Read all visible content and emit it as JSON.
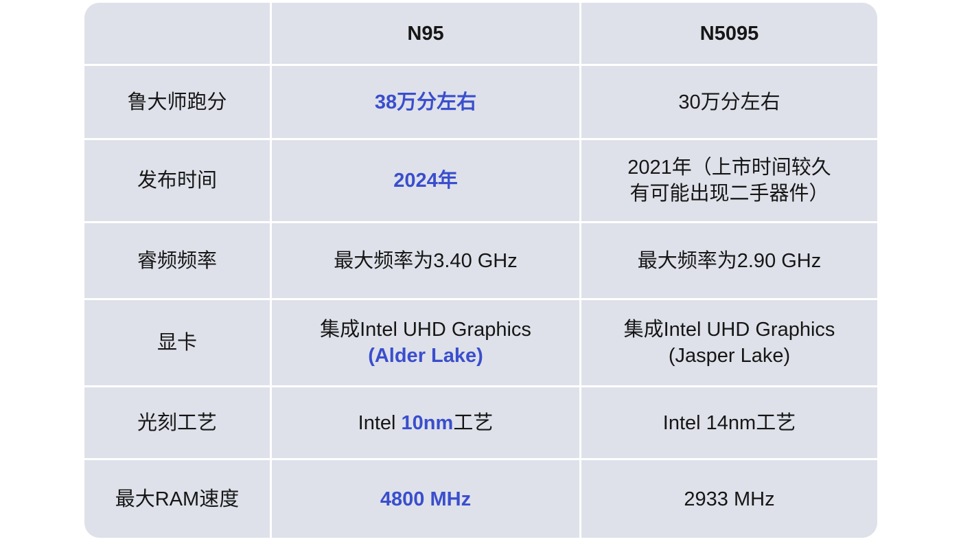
{
  "colors": {
    "highlight_blue": "#3a4ecd",
    "cell_background": "#dee1e9",
    "divider_white": "#ffffff",
    "text_dark": "#161616"
  },
  "table": {
    "columns": {
      "label_header": "",
      "n95": "N95",
      "n5095": "N5095"
    },
    "rows": {
      "benchmark": {
        "label": "鲁大师跑分",
        "n95_value": "38万分左右",
        "n5095_value": "30万分左右"
      },
      "release_date": {
        "label": "发布时间",
        "n95_value": "2024年",
        "n5095_line1": "2021年（上市时间较久",
        "n5095_line2": "有可能出现二手器件）"
      },
      "turbo_frequency": {
        "label": "睿频频率",
        "n95_value": "最大频率为3.40 GHz",
        "n5095_value": "最大频率为2.90 GHz"
      },
      "graphics": {
        "label": "显卡",
        "n95_line1": "集成Intel UHD Graphics",
        "n95_line2": "(Alder Lake)",
        "n5095_line1": "集成Intel UHD Graphics",
        "n5095_line2": "(Jasper Lake)"
      },
      "lithography": {
        "label": "光刻工艺",
        "n95_prefix": "Intel ",
        "n95_highlight": "10nm",
        "n95_suffix": "工艺",
        "n5095_value": "Intel 14nm工艺"
      },
      "max_ram_speed": {
        "label": "最大RAM速度",
        "n95_value": "4800 MHz",
        "n5095_value": "2933 MHz"
      }
    }
  }
}
